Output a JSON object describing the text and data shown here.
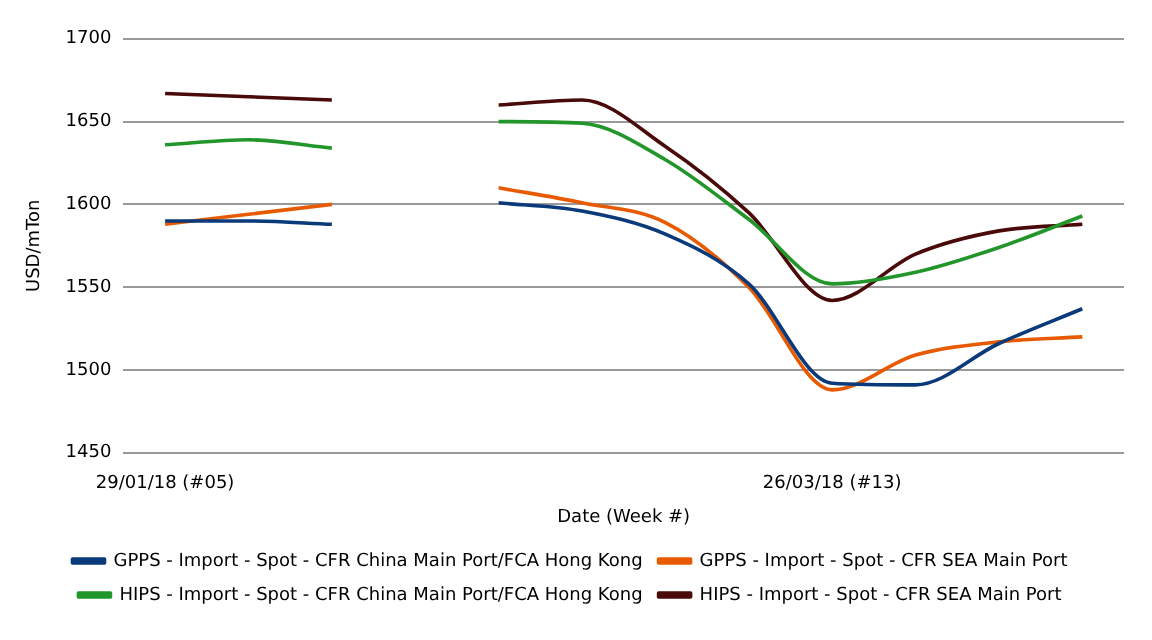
{
  "chart_data": {
    "type": "line",
    "xlabel": "Date (Week #)",
    "ylabel": "USD/mTon",
    "categories": [
      "29/01/18 (#05)",
      null,
      null,
      null,
      null,
      null,
      null,
      null,
      "26/03/18 (#13)",
      null,
      null,
      null
    ],
    "series": [
      {
        "name": "GPPS - Import - Spot - CFR China Main Port/FCA Hong Kong",
        "color": "#0a3a7a",
        "values": [
          1590,
          1590,
          1588,
          null,
          1601,
          1596,
          1582,
          1552,
          1492,
          1491,
          1516,
          1537
        ]
      },
      {
        "name": "GPPS - Import - Spot - CFR SEA Main Port",
        "color": "#e85a00",
        "values": [
          1588,
          1594,
          1600,
          null,
          1610,
          1601,
          1589,
          1550,
          1488,
          1509,
          1517,
          1520
        ]
      },
      {
        "name": "HIPS - Import - Spot - CFR China Main Port/FCA Hong Kong",
        "color": "#22962a",
        "values": [
          1636,
          1639,
          1634,
          null,
          1650,
          1649,
          1627,
          1591,
          1552,
          1559,
          1574,
          1593
        ]
      },
      {
        "name": "HIPS - Import - Spot - CFR SEA Main Port",
        "color": "#4a0a0a",
        "values": [
          1667,
          1665,
          1663,
          null,
          1660,
          1663,
          1635,
          1595,
          1542,
          1570,
          1584,
          1588
        ]
      }
    ],
    "ylim": [
      1450,
      1700
    ],
    "yticks": [
      1450,
      1500,
      1550,
      1600,
      1650,
      1700
    ],
    "grid": "y",
    "legend": "bottom",
    "marker": "none",
    "line_style": "solid"
  }
}
